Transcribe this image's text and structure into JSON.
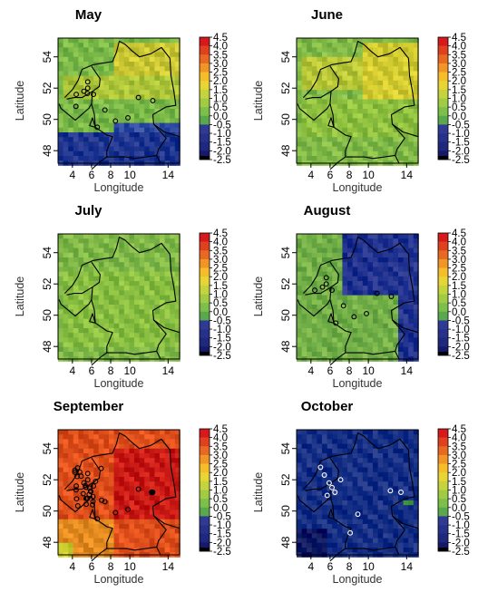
{
  "axis": {
    "xlabel": "Longitude",
    "ylabel": "Latitude",
    "x_ticks": [
      "4",
      "6",
      "8",
      "10",
      "14"
    ],
    "y_ticks": [
      "54",
      "52",
      "50",
      "48"
    ]
  },
  "colorbar": {
    "labels": [
      "4.5",
      "4.0",
      "3.5",
      "3.0",
      "2.5",
      "2.0",
      "1.5",
      "1.0",
      "0.5",
      "0.0",
      "-0.5",
      "-1.0",
      "-1.5",
      "-2.0",
      "-2.5"
    ],
    "colors": [
      "#d7191c",
      "#e0401f",
      "#e86a22",
      "#f09526",
      "#f6bd2a",
      "#e6d534",
      "#c5d33c",
      "#a2cb44",
      "#7cbf4b",
      "#5aa84d",
      "#2e3a94",
      "#26318a",
      "#1e287c",
      "#16196a",
      "#000000"
    ]
  },
  "panels": [
    {
      "title": "May",
      "base": "#86c24e",
      "dots": "black"
    },
    {
      "title": "June",
      "base": "#8ec44e",
      "dots": "none"
    },
    {
      "title": "July",
      "base": "#8cc24e",
      "dots": "none"
    },
    {
      "title": "August",
      "base": "#7fb94e",
      "dots": "black"
    },
    {
      "title": "September",
      "base": "#ec5a22",
      "dots": "black"
    },
    {
      "title": "October",
      "base": "#233a8c",
      "dots": "white"
    }
  ]
}
